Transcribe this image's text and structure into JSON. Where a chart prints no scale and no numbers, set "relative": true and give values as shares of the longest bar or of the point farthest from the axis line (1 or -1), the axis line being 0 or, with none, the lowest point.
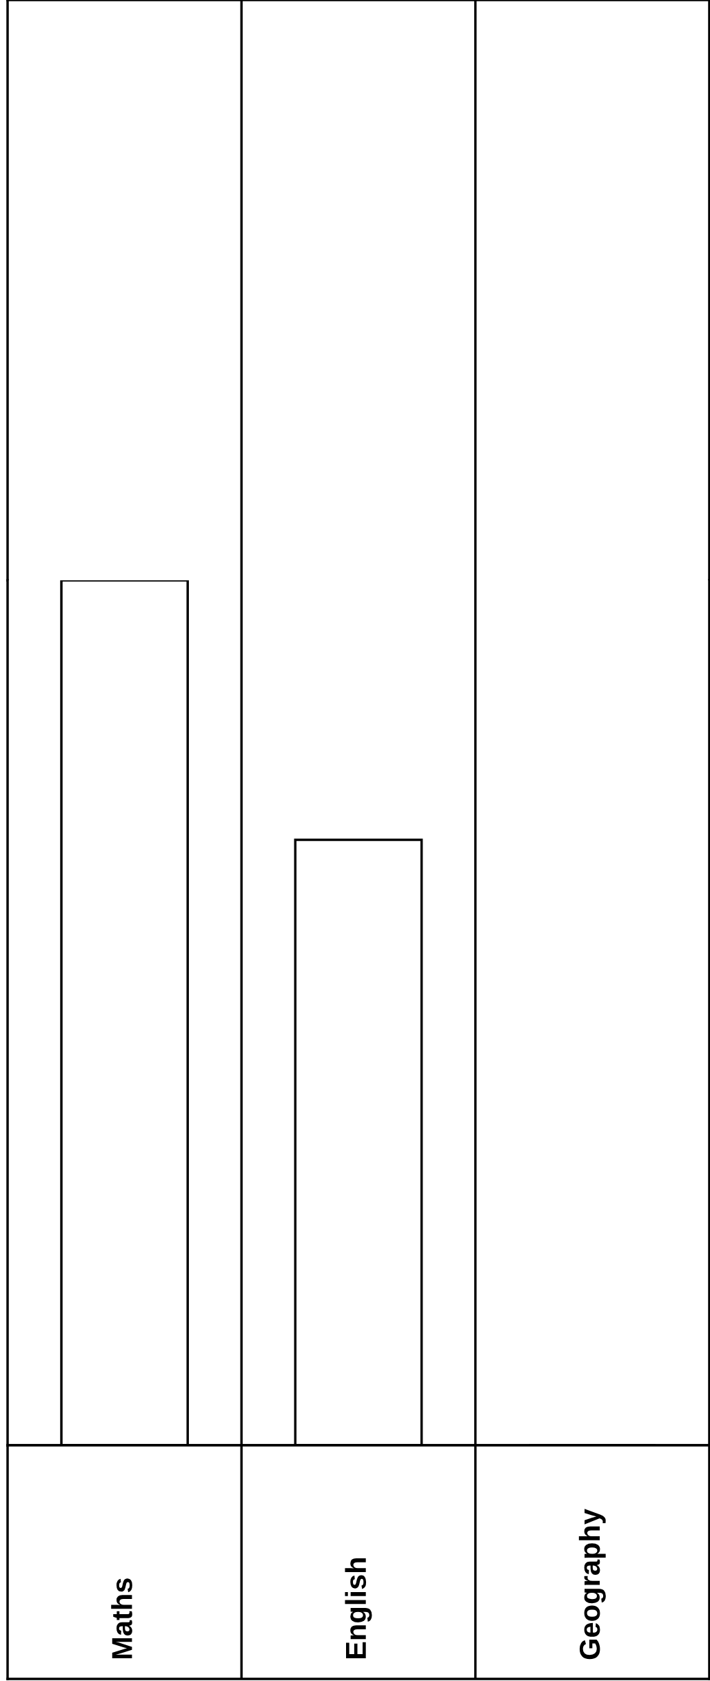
{
  "chart_data": {
    "type": "bar",
    "relative": true,
    "categories": [
      "Maths",
      "English",
      "Geography"
    ],
    "values": [
      1,
      0.7,
      0
    ],
    "color": "#000000",
    "legend": false
  }
}
